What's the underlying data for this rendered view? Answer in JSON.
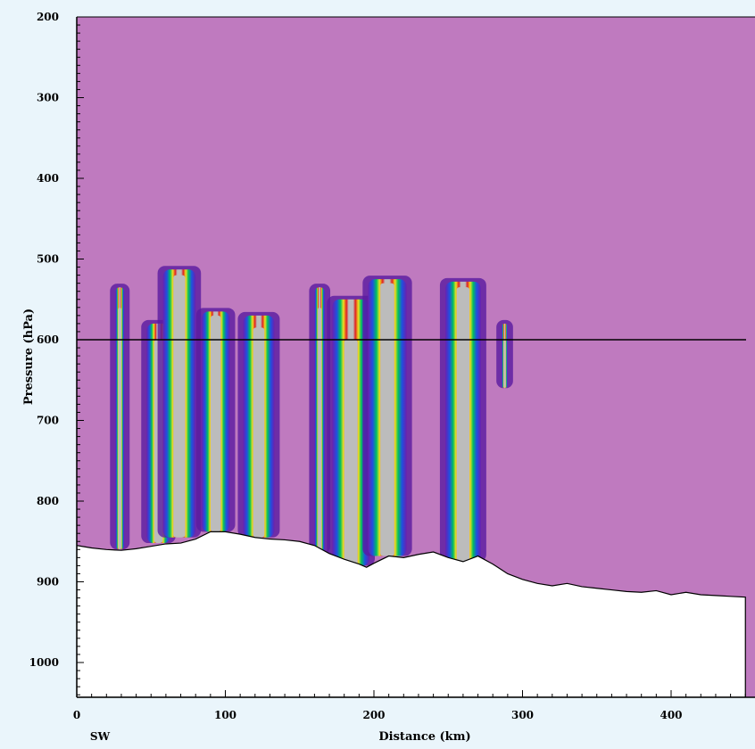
{
  "chart_data": {
    "type": "heatmap",
    "title": "",
    "xlabel": "Distance (km)",
    "ylabel": "Pressure (hPa)",
    "x_annotation": "SW",
    "xlim": [
      0,
      450
    ],
    "ylim": [
      1050,
      200
    ],
    "x_ticks": [
      {
        "value": 0,
        "label": "0"
      },
      {
        "value": 100,
        "label": "100"
      },
      {
        "value": 200,
        "label": "200"
      },
      {
        "value": 300,
        "label": "300"
      },
      {
        "value": 400,
        "label": "400"
      }
    ],
    "y_ticks": [
      {
        "value": 200,
        "label": "200"
      },
      {
        "value": 300,
        "label": "300"
      },
      {
        "value": 400,
        "label": "400"
      },
      {
        "value": 500,
        "label": "500"
      },
      {
        "value": 600,
        "label": "600"
      },
      {
        "value": 700,
        "label": "700"
      },
      {
        "value": 800,
        "label": "800"
      },
      {
        "value": 900,
        "label": "900"
      },
      {
        "value": 1000,
        "label": "1000"
      }
    ],
    "reference_line_pressure": 600,
    "background_color": "#bf7abf",
    "ground_color": "#ffffff",
    "surface_pressure": [
      [
        0,
        855
      ],
      [
        10,
        858
      ],
      [
        20,
        860
      ],
      [
        30,
        861
      ],
      [
        40,
        859
      ],
      [
        50,
        856
      ],
      [
        60,
        853
      ],
      [
        70,
        852
      ],
      [
        80,
        847
      ],
      [
        90,
        838
      ],
      [
        100,
        838
      ],
      [
        110,
        841
      ],
      [
        120,
        845
      ],
      [
        130,
        847
      ],
      [
        140,
        848
      ],
      [
        150,
        850
      ],
      [
        160,
        855
      ],
      [
        170,
        865
      ],
      [
        180,
        872
      ],
      [
        190,
        878
      ],
      [
        195,
        882
      ],
      [
        200,
        877
      ],
      [
        210,
        868
      ],
      [
        220,
        870
      ],
      [
        230,
        866
      ],
      [
        240,
        863
      ],
      [
        250,
        870
      ],
      [
        260,
        875
      ],
      [
        270,
        868
      ],
      [
        280,
        878
      ],
      [
        290,
        890
      ],
      [
        300,
        897
      ],
      [
        310,
        902
      ],
      [
        320,
        905
      ],
      [
        330,
        902
      ],
      [
        340,
        906
      ],
      [
        350,
        908
      ],
      [
        360,
        910
      ],
      [
        370,
        912
      ],
      [
        380,
        913
      ],
      [
        390,
        911
      ],
      [
        400,
        916
      ],
      [
        410,
        913
      ],
      [
        420,
        916
      ],
      [
        430,
        917
      ],
      [
        440,
        918
      ],
      [
        450,
        919
      ]
    ],
    "cloud_columns": [
      {
        "x_left": 26,
        "x_right": 32,
        "top": 535,
        "bottom": 860,
        "core_top": 560
      },
      {
        "x_left": 47,
        "x_right": 63,
        "top": 580,
        "bottom": 852,
        "core_top": 600
      },
      {
        "x_left": 58,
        "x_right": 80,
        "top": 513,
        "bottom": 845,
        "core_top": 520
      },
      {
        "x_left": 84,
        "x_right": 103,
        "top": 565,
        "bottom": 838,
        "core_top": 570
      },
      {
        "x_left": 112,
        "x_right": 133,
        "top": 570,
        "bottom": 845,
        "core_top": 585
      },
      {
        "x_left": 160,
        "x_right": 167,
        "top": 535,
        "bottom": 865,
        "core_top": 560
      },
      {
        "x_left": 172,
        "x_right": 197,
        "top": 550,
        "bottom": 880,
        "core_top": 600
      },
      {
        "x_left": 196,
        "x_right": 222,
        "top": 525,
        "bottom": 868,
        "core_top": 530
      },
      {
        "x_left": 248,
        "x_right": 272,
        "top": 528,
        "bottom": 875,
        "core_top": 535
      },
      {
        "x_left": 286,
        "x_right": 290,
        "top": 580,
        "bottom": 660,
        "core_top": 600
      }
    ]
  }
}
